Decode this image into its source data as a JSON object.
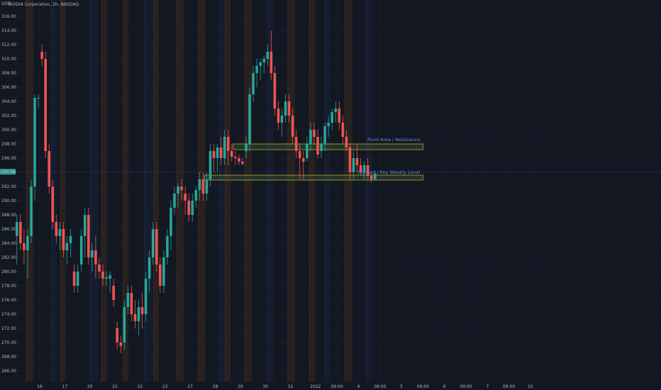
{
  "header": {
    "symbol": "NVIDIA Corporation, 1h, NASDAQ",
    "currency_label": "USD",
    "price_tag": "294.08"
  },
  "colors": {
    "background": "#131722",
    "up": "#26a69a",
    "down": "#ef5350",
    "grid": "#1f2330",
    "session_orange": "#3a2a1e",
    "session_blue": "#15233a",
    "zone_fill": "#2b4a33",
    "zone_border": "#c9a227",
    "annotation": "#5b8fd9"
  },
  "chart_data": {
    "type": "candlestick",
    "title": "NVIDIA Corporation, 1h, NASDAQ",
    "ylim": [
      265,
      317
    ],
    "y_ticks": [
      "266.00",
      "268.00",
      "270.00",
      "272.00",
      "274.00",
      "276.00",
      "278.00",
      "280.00",
      "282.00",
      "284.00",
      "286.00",
      "288.00",
      "290.00",
      "292.00",
      "294.00",
      "296.00",
      "298.00",
      "300.00",
      "302.00",
      "304.00",
      "306.00",
      "308.00",
      "310.00",
      "312.00",
      "314.00",
      "316.00"
    ],
    "x_ticks": [
      {
        "label": "16",
        "pos": 0
      },
      {
        "label": "17",
        "pos": 7
      },
      {
        "label": "20",
        "pos": 14
      },
      {
        "label": "21",
        "pos": 21
      },
      {
        "label": "22",
        "pos": 28
      },
      {
        "label": "23",
        "pos": 35
      },
      {
        "label": "27",
        "pos": 42
      },
      {
        "label": "28",
        "pos": 49
      },
      {
        "label": "29",
        "pos": 56
      },
      {
        "label": "30",
        "pos": 63
      },
      {
        "label": "31",
        "pos": 70
      },
      {
        "label": "2022",
        "pos": 77
      },
      {
        "label": "09:00",
        "pos": 83
      },
      {
        "label": "4",
        "pos": 89
      },
      {
        "label": "09:00",
        "pos": 95
      },
      {
        "label": "5",
        "pos": 101
      },
      {
        "label": "09:00",
        "pos": 107
      },
      {
        "label": "6",
        "pos": 113
      },
      {
        "label": "09:00",
        "pos": 119
      },
      {
        "label": "7",
        "pos": 125
      },
      {
        "label": "09:00",
        "pos": 131
      },
      {
        "label": "10",
        "pos": 137
      }
    ],
    "candles": [
      {
        "o": 285,
        "h": 288,
        "l": 281,
        "c": 287
      },
      {
        "o": 287,
        "h": 288,
        "l": 283,
        "c": 284
      },
      {
        "o": 284,
        "h": 286,
        "l": 281,
        "c": 283
      },
      {
        "o": 283,
        "h": 286,
        "l": 279,
        "c": 285
      },
      {
        "o": 285,
        "h": 293,
        "l": 284,
        "c": 292
      },
      {
        "o": 292,
        "h": 305,
        "l": 290,
        "c": 304.5
      },
      {
        "o": 304.5,
        "h": 305,
        "l": 303,
        "c": 304.5
      },
      {
        "o": 311,
        "h": 312,
        "l": 309,
        "c": 310
      },
      {
        "o": 310,
        "h": 311,
        "l": 296,
        "c": 297
      },
      {
        "o": 297,
        "h": 298,
        "l": 291,
        "c": 292
      },
      {
        "o": 292,
        "h": 293,
        "l": 286,
        "c": 287
      },
      {
        "o": 287,
        "h": 288,
        "l": 284,
        "c": 285
      },
      {
        "o": 285,
        "h": 287,
        "l": 283,
        "c": 286
      },
      {
        "o": 286,
        "h": 287,
        "l": 282,
        "c": 283
      },
      {
        "o": 283,
        "h": 285,
        "l": 281,
        "c": 284
      },
      {
        "o": 284,
        "h": 286,
        "l": 282,
        "c": 285
      },
      {
        "o": 280,
        "h": 281,
        "l": 277,
        "c": 278
      },
      {
        "o": 278,
        "h": 281,
        "l": 277,
        "c": 280
      },
      {
        "o": 281,
        "h": 286,
        "l": 280,
        "c": 285
      },
      {
        "o": 285,
        "h": 289,
        "l": 282,
        "c": 288
      },
      {
        "o": 288,
        "h": 289,
        "l": 281,
        "c": 282
      },
      {
        "o": 282,
        "h": 284,
        "l": 280,
        "c": 283
      },
      {
        "o": 283,
        "h": 285,
        "l": 279,
        "c": 281
      },
      {
        "o": 281,
        "h": 282,
        "l": 279,
        "c": 280
      },
      {
        "o": 280,
        "h": 281,
        "l": 278,
        "c": 279
      },
      {
        "o": 279,
        "h": 280,
        "l": 278,
        "c": 279.2
      },
      {
        "o": 279,
        "h": 280,
        "l": 277,
        "c": 279.5
      },
      {
        "o": 278,
        "h": 279,
        "l": 275,
        "c": 276
      },
      {
        "o": 272,
        "h": 273,
        "l": 269,
        "c": 270
      },
      {
        "o": 270,
        "h": 271,
        "l": 268.5,
        "c": 269.5
      },
      {
        "o": 270,
        "h": 276,
        "l": 269,
        "c": 275
      },
      {
        "o": 275,
        "h": 278,
        "l": 274,
        "c": 277
      },
      {
        "o": 277,
        "h": 278,
        "l": 273,
        "c": 274
      },
      {
        "o": 274,
        "h": 276,
        "l": 272,
        "c": 273
      },
      {
        "o": 273,
        "h": 276,
        "l": 271,
        "c": 275
      },
      {
        "o": 275,
        "h": 277,
        "l": 272,
        "c": 274
      },
      {
        "o": 274,
        "h": 280,
        "l": 273,
        "c": 279
      },
      {
        "o": 279,
        "h": 283,
        "l": 277,
        "c": 282
      },
      {
        "o": 282,
        "h": 287,
        "l": 281,
        "c": 286
      },
      {
        "o": 286,
        "h": 287,
        "l": 280,
        "c": 281
      },
      {
        "o": 281,
        "h": 282,
        "l": 277,
        "c": 278
      },
      {
        "o": 278,
        "h": 283,
        "l": 277,
        "c": 282
      },
      {
        "o": 282,
        "h": 286,
        "l": 281,
        "c": 285
      },
      {
        "o": 285,
        "h": 290,
        "l": 283,
        "c": 289
      },
      {
        "o": 289,
        "h": 292,
        "l": 288,
        "c": 291
      },
      {
        "o": 291,
        "h": 292.5,
        "l": 289,
        "c": 292
      },
      {
        "o": 292,
        "h": 293,
        "l": 290,
        "c": 291.5
      },
      {
        "o": 291,
        "h": 292,
        "l": 288,
        "c": 290
      },
      {
        "o": 290,
        "h": 291,
        "l": 287,
        "c": 288
      },
      {
        "o": 288,
        "h": 291,
        "l": 287,
        "c": 290
      },
      {
        "o": 290,
        "h": 292,
        "l": 289,
        "c": 291.5
      },
      {
        "o": 291.5,
        "h": 294,
        "l": 290,
        "c": 293
      },
      {
        "o": 293,
        "h": 294,
        "l": 290,
        "c": 291
      },
      {
        "o": 291,
        "h": 294,
        "l": 290,
        "c": 293
      },
      {
        "o": 293,
        "h": 298,
        "l": 292,
        "c": 297
      },
      {
        "o": 297,
        "h": 298,
        "l": 294,
        "c": 296
      },
      {
        "o": 296,
        "h": 298,
        "l": 294,
        "c": 297.5
      },
      {
        "o": 297.5,
        "h": 299,
        "l": 295,
        "c": 296
      },
      {
        "o": 296,
        "h": 300,
        "l": 295,
        "c": 299
      },
      {
        "o": 299,
        "h": 300,
        "l": 295,
        "c": 297
      },
      {
        "o": 297,
        "h": 298,
        "l": 295.5,
        "c": 296.2
      },
      {
        "o": 296.2,
        "h": 297,
        "l": 295,
        "c": 296
      },
      {
        "o": 296,
        "h": 296.5,
        "l": 295,
        "c": 295.5
      },
      {
        "o": 295.5,
        "h": 296,
        "l": 295,
        "c": 295.2
      },
      {
        "o": 297,
        "h": 299,
        "l": 296,
        "c": 298
      },
      {
        "o": 298,
        "h": 306,
        "l": 297,
        "c": 305
      },
      {
        "o": 305,
        "h": 309,
        "l": 304,
        "c": 308
      },
      {
        "o": 308,
        "h": 310,
        "l": 306,
        "c": 309
      },
      {
        "o": 309,
        "h": 310,
        "l": 307,
        "c": 309.5
      },
      {
        "o": 309.5,
        "h": 310.5,
        "l": 308,
        "c": 310
      },
      {
        "o": 310,
        "h": 312,
        "l": 309,
        "c": 311
      },
      {
        "o": 311,
        "h": 314,
        "l": 307,
        "c": 308
      },
      {
        "o": 308,
        "h": 309,
        "l": 302,
        "c": 303
      },
      {
        "o": 303,
        "h": 304,
        "l": 300,
        "c": 301
      },
      {
        "o": 301,
        "h": 303,
        "l": 299,
        "c": 302
      },
      {
        "o": 302,
        "h": 305,
        "l": 301,
        "c": 304
      },
      {
        "o": 304,
        "h": 305,
        "l": 301,
        "c": 302
      },
      {
        "o": 302,
        "h": 303,
        "l": 298,
        "c": 299
      },
      {
        "o": 299,
        "h": 300,
        "l": 296,
        "c": 297
      },
      {
        "o": 297,
        "h": 298,
        "l": 293,
        "c": 296
      },
      {
        "o": 296,
        "h": 297,
        "l": 293,
        "c": 295.5
      },
      {
        "o": 296,
        "h": 299,
        "l": 295.5,
        "c": 298
      },
      {
        "o": 298,
        "h": 301,
        "l": 297,
        "c": 300
      },
      {
        "o": 300,
        "h": 301,
        "l": 298,
        "c": 299
      },
      {
        "o": 299,
        "h": 300,
        "l": 296,
        "c": 296.5
      },
      {
        "o": 297,
        "h": 299,
        "l": 296,
        "c": 298
      },
      {
        "o": 298,
        "h": 301,
        "l": 297,
        "c": 300.5
      },
      {
        "o": 300.5,
        "h": 302,
        "l": 299,
        "c": 301
      },
      {
        "o": 301,
        "h": 303,
        "l": 300,
        "c": 302.5
      },
      {
        "o": 302.5,
        "h": 304,
        "l": 301,
        "c": 303
      },
      {
        "o": 303,
        "h": 304,
        "l": 300,
        "c": 301
      },
      {
        "o": 301,
        "h": 302,
        "l": 298,
        "c": 299
      },
      {
        "o": 299,
        "h": 300,
        "l": 297,
        "c": 297.5
      },
      {
        "o": 297.5,
        "h": 298,
        "l": 293,
        "c": 294
      },
      {
        "o": 294,
        "h": 297,
        "l": 293,
        "c": 296
      },
      {
        "o": 296,
        "h": 298,
        "l": 294,
        "c": 295
      },
      {
        "o": 295,
        "h": 296,
        "l": 293.5,
        "c": 294
      },
      {
        "o": 294,
        "h": 295.5,
        "l": 293,
        "c": 295
      },
      {
        "o": 295,
        "h": 296,
        "l": 293,
        "c": 293.5
      },
      {
        "o": 293.5,
        "h": 294,
        "l": 292.5,
        "c": 293
      },
      {
        "o": 293,
        "h": 294.2,
        "l": 292.8,
        "c": 293.8
      }
    ],
    "sessions": [
      {
        "start": 3,
        "end": 5,
        "kind": "orange"
      },
      {
        "start": 10,
        "end": 11.5,
        "kind": "blue"
      },
      {
        "start": 12.5,
        "end": 14,
        "kind": "orange"
      },
      {
        "start": 21,
        "end": 23,
        "kind": "blue"
      },
      {
        "start": 24,
        "end": 25.5,
        "kind": "orange"
      },
      {
        "start": 30,
        "end": 31.5,
        "kind": "orange"
      },
      {
        "start": 36,
        "end": 38,
        "kind": "blue"
      },
      {
        "start": 38.5,
        "end": 40,
        "kind": "orange"
      },
      {
        "start": 45,
        "end": 47,
        "kind": "orange"
      },
      {
        "start": 51,
        "end": 53,
        "kind": "orange"
      },
      {
        "start": 57,
        "end": 58.5,
        "kind": "blue"
      },
      {
        "start": 58.5,
        "end": 60,
        "kind": "orange"
      },
      {
        "start": 64,
        "end": 66,
        "kind": "orange"
      },
      {
        "start": 70.5,
        "end": 72,
        "kind": "blue"
      },
      {
        "start": 76,
        "end": 78,
        "kind": "orange"
      },
      {
        "start": 82,
        "end": 83.5,
        "kind": "orange"
      },
      {
        "start": 86.5,
        "end": 88,
        "kind": "blue"
      },
      {
        "start": 92,
        "end": 94,
        "kind": "orange"
      },
      {
        "start": 98,
        "end": 99.5,
        "kind": "blue"
      }
    ],
    "zones": [
      {
        "name": "pivot",
        "label": "Pivot Area / Resistance",
        "y_low": 297.2,
        "y_high": 298,
        "x_start": 54,
        "x_end": 107
      },
      {
        "name": "support",
        "label": "Support / Key Weekly Level",
        "y_low": 292.9,
        "y_high": 293.6,
        "x_start": 46,
        "x_end": 107
      }
    ],
    "current_price": 294.08
  }
}
